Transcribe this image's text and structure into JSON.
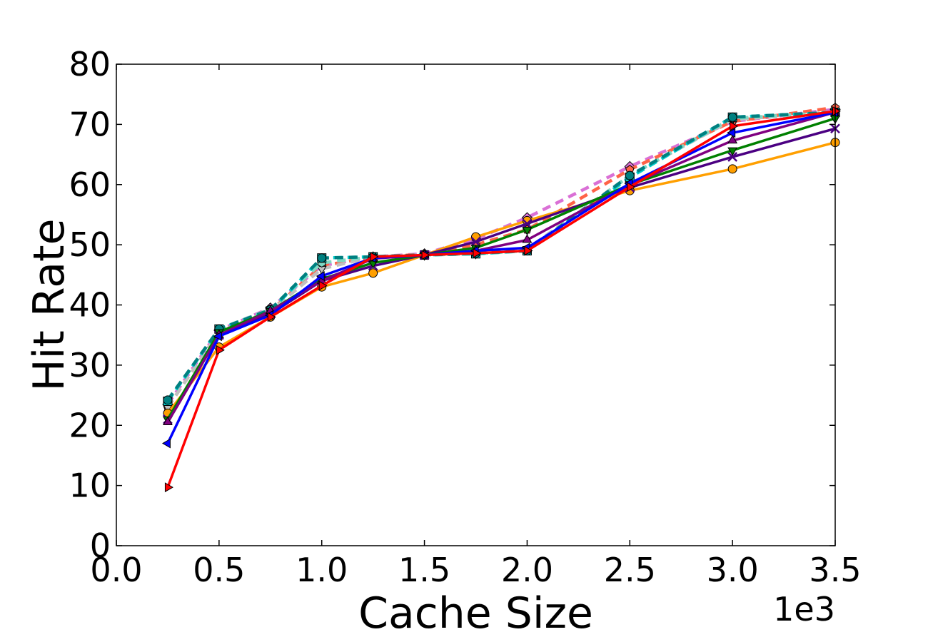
{
  "chart_data": {
    "type": "line",
    "title": "",
    "xlabel": "Cache Size",
    "ylabel": "Hit Rate",
    "x_offset_label": "1e3",
    "xlim": [
      0.0,
      3.5
    ],
    "ylim": [
      0,
      80
    ],
    "x_ticks": [
      0.0,
      0.5,
      1.0,
      1.5,
      2.0,
      2.5,
      3.0,
      3.5
    ],
    "x_tick_labels": [
      "0.0",
      "0.5",
      "1.0",
      "1.5",
      "2.0",
      "2.5",
      "3.0",
      "3.5"
    ],
    "y_ticks": [
      0,
      10,
      20,
      30,
      40,
      50,
      60,
      70,
      80
    ],
    "y_tick_labels": [
      "0",
      "10",
      "20",
      "30",
      "40",
      "50",
      "60",
      "70",
      "80"
    ],
    "grid": false,
    "legend": "none",
    "x": [
      0.25,
      0.5,
      0.75,
      1.0,
      1.25,
      1.5,
      1.75,
      2.0,
      2.5,
      3.0,
      3.5
    ],
    "series": [
      {
        "color": "#ff9f00",
        "dash": "solid",
        "marker": "circle",
        "values": [
          22.0,
          33.0,
          38.0,
          43.0,
          45.3,
          48.3,
          51.3,
          54.0,
          59.0,
          62.6,
          67.0
        ]
      },
      {
        "color": "#4b0082",
        "dash": "solid",
        "marker": "x",
        "values": [
          21.0,
          35.0,
          38.5,
          44.0,
          46.5,
          48.3,
          50.5,
          53.5,
          59.5,
          64.6,
          69.3
        ]
      },
      {
        "color": "#008000",
        "dash": "solid",
        "marker": "triangle-down",
        "values": [
          21.0,
          35.5,
          39.0,
          44.3,
          47.0,
          48.3,
          49.5,
          52.5,
          60.0,
          65.7,
          71.0
        ]
      },
      {
        "color": "#800080",
        "dash": "solid",
        "marker": "triangle-up",
        "values": [
          20.5,
          35.0,
          39.0,
          44.0,
          47.7,
          48.3,
          49.0,
          50.8,
          60.0,
          67.3,
          72.0
        ]
      },
      {
        "color": "#0000ff",
        "dash": "solid",
        "marker": "triangle-left",
        "values": [
          17.0,
          34.8,
          38.3,
          44.8,
          47.8,
          48.3,
          49.0,
          49.5,
          60.2,
          68.6,
          72.0
        ]
      },
      {
        "color": "#ff0000",
        "dash": "solid",
        "marker": "triangle-right",
        "values": [
          9.7,
          32.5,
          38.0,
          43.2,
          48.0,
          48.3,
          48.6,
          49.0,
          59.6,
          69.7,
          72.2
        ]
      },
      {
        "color": "#da70d6",
        "dash": "dashed",
        "marker": "diamond",
        "values": [
          23.5,
          35.8,
          39.5,
          46.5,
          48.0,
          48.5,
          51.0,
          54.5,
          63.0,
          70.5,
          72.5
        ]
      },
      {
        "color": "#ff6347",
        "dash": "dashed",
        "marker": "pentagon",
        "values": [
          23.0,
          35.5,
          39.0,
          46.5,
          48.0,
          48.4,
          50.0,
          52.5,
          62.5,
          70.5,
          72.8
        ]
      },
      {
        "color": "#c0c0c0",
        "dash": "dashed",
        "marker": "triangle-down",
        "values": [
          23.0,
          35.5,
          39.0,
          46.0,
          48.0,
          48.3,
          48.5,
          49.3,
          61.5,
          70.8,
          72.0
        ]
      },
      {
        "color": "#7fd9c4",
        "dash": "dashed",
        "marker": "hexagon",
        "values": [
          24.0,
          36.0,
          39.3,
          47.0,
          48.0,
          48.3,
          48.5,
          49.0,
          61.5,
          71.0,
          72.0
        ]
      },
      {
        "color": "#00cdcd",
        "dash": "dashed",
        "marker": "square",
        "values": [
          24.0,
          36.0,
          39.0,
          47.8,
          48.0,
          48.3,
          48.5,
          49.0,
          61.2,
          71.2,
          72.0
        ]
      },
      {
        "color": "#008080",
        "dash": "dashed",
        "marker": "circle",
        "values": [
          24.2,
          36.0,
          39.2,
          47.8,
          48.0,
          48.3,
          48.6,
          49.0,
          61.5,
          71.2,
          72.0
        ]
      }
    ]
  }
}
